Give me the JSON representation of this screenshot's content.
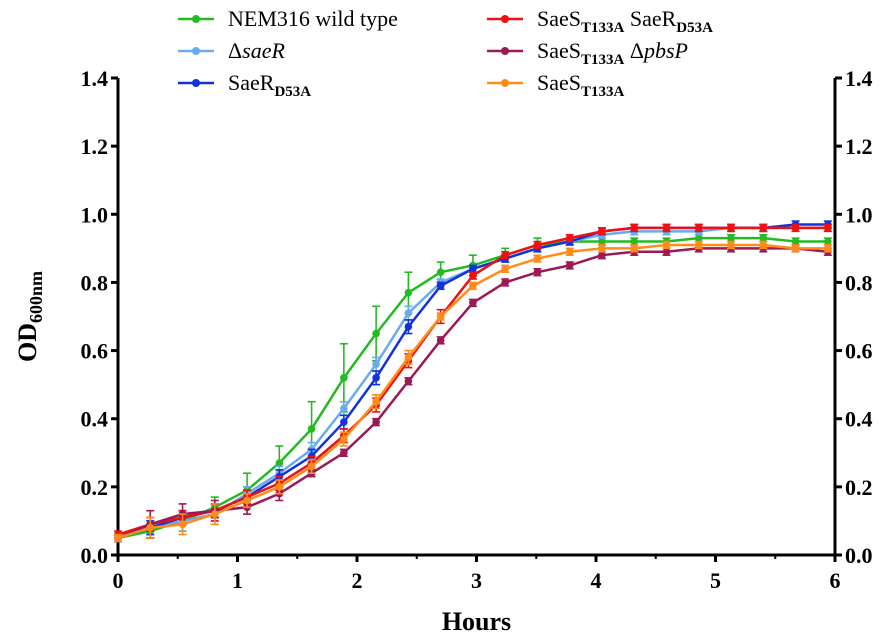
{
  "chart_data": {
    "type": "line",
    "xlabel": "Hours",
    "ylabel": {
      "main": "OD",
      "sub": "600nm"
    },
    "xlim": [
      0,
      6
    ],
    "ylim": [
      0,
      1.4
    ],
    "xticks": [
      "0",
      "1",
      "2",
      "3",
      "4",
      "5",
      "6"
    ],
    "yticks_left": [
      "0.0",
      "0.2",
      "0.4",
      "0.6",
      "0.8",
      "1.0",
      "1.2",
      "1.4"
    ],
    "yticks_right": [
      "0.0",
      "0.2",
      "0.4",
      "0.6",
      "0.8",
      "1.0",
      "1.2",
      "1.4"
    ],
    "grid": false,
    "legend_placement": "top",
    "x": [
      0,
      0.27,
      0.54,
      0.81,
      1.08,
      1.35,
      1.62,
      1.89,
      2.16,
      2.43,
      2.7,
      2.97,
      3.24,
      3.51,
      3.78,
      4.05,
      4.32,
      4.59,
      4.86,
      5.13,
      5.4,
      5.67,
      5.94
    ],
    "series": [
      {
        "name": "NEM316 wild type",
        "legend": [
          {
            "t": "NEM316 wild type"
          }
        ],
        "color": "#22bb22",
        "values": [
          0.05,
          0.07,
          0.1,
          0.14,
          0.19,
          0.27,
          0.37,
          0.52,
          0.65,
          0.77,
          0.83,
          0.85,
          0.88,
          0.91,
          0.92,
          0.92,
          0.92,
          0.92,
          0.93,
          0.93,
          0.93,
          0.92,
          0.92
        ],
        "errors": [
          0.01,
          0.02,
          0.03,
          0.03,
          0.05,
          0.05,
          0.08,
          0.1,
          0.08,
          0.06,
          0.03,
          0.03,
          0.02,
          0.02,
          0.01,
          0.01,
          0.01,
          0.01,
          0.01,
          0.01,
          0.01,
          0.01,
          0.01
        ]
      },
      {
        "name": "ΔsaeR",
        "legend": [
          {
            "t": "Δ"
          },
          {
            "t": "saeR",
            "i": true
          }
        ],
        "color": "#6aaaee",
        "values": [
          0.05,
          0.08,
          0.1,
          0.12,
          0.18,
          0.24,
          0.31,
          0.43,
          0.56,
          0.71,
          0.8,
          0.84,
          0.87,
          0.9,
          0.92,
          0.94,
          0.95,
          0.95,
          0.95,
          0.96,
          0.96,
          0.96,
          0.96
        ],
        "errors": [
          0.01,
          0.02,
          0.03,
          0.03,
          0.02,
          0.02,
          0.02,
          0.02,
          0.02,
          0.02,
          0.01,
          0.01,
          0.01,
          0.01,
          0.01,
          0.01,
          0.01,
          0.01,
          0.01,
          0.01,
          0.01,
          0.01,
          0.01
        ]
      },
      {
        "name": "SaeRD53A",
        "legend": [
          {
            "t": "SaeR"
          },
          {
            "t": "D53A",
            "sub": true
          }
        ],
        "color": "#1133dd",
        "values": [
          0.05,
          0.08,
          0.11,
          0.13,
          0.17,
          0.23,
          0.29,
          0.39,
          0.52,
          0.67,
          0.79,
          0.84,
          0.87,
          0.9,
          0.92,
          0.95,
          0.96,
          0.96,
          0.96,
          0.96,
          0.96,
          0.97,
          0.97
        ],
        "errors": [
          0.01,
          0.02,
          0.02,
          0.02,
          0.02,
          0.02,
          0.02,
          0.02,
          0.02,
          0.02,
          0.01,
          0.01,
          0.01,
          0.01,
          0.01,
          0.01,
          0.01,
          0.01,
          0.01,
          0.01,
          0.01,
          0.01,
          0.01
        ]
      },
      {
        "name": "SaeST133A SaeRD53A",
        "legend": [
          {
            "t": "SaeS"
          },
          {
            "t": "T133A",
            "sub": true
          },
          {
            "t": " SaeR"
          },
          {
            "t": "D53A",
            "sub": true
          }
        ],
        "color": "#ee1111",
        "values": [
          0.06,
          0.09,
          0.11,
          0.13,
          0.17,
          0.21,
          0.27,
          0.35,
          0.44,
          0.57,
          0.7,
          0.82,
          0.88,
          0.91,
          0.93,
          0.95,
          0.96,
          0.96,
          0.96,
          0.96,
          0.96,
          0.96,
          0.96
        ],
        "errors": [
          0.01,
          0.02,
          0.02,
          0.02,
          0.02,
          0.02,
          0.02,
          0.02,
          0.02,
          0.02,
          0.02,
          0.01,
          0.01,
          0.01,
          0.01,
          0.01,
          0.01,
          0.01,
          0.01,
          0.01,
          0.01,
          0.01,
          0.01
        ]
      },
      {
        "name": "SaeST133A ΔpbsP",
        "legend": [
          {
            "t": "SaeS"
          },
          {
            "t": "T133A",
            "sub": true
          },
          {
            "t": " Δ"
          },
          {
            "t": "pbsP",
            "i": true
          }
        ],
        "color": "#9b1a55",
        "values": [
          0.05,
          0.09,
          0.12,
          0.13,
          0.14,
          0.18,
          0.24,
          0.3,
          0.39,
          0.51,
          0.63,
          0.74,
          0.8,
          0.83,
          0.85,
          0.88,
          0.89,
          0.89,
          0.9,
          0.9,
          0.9,
          0.9,
          0.89
        ],
        "errors": [
          0.01,
          0.04,
          0.03,
          0.03,
          0.02,
          0.02,
          0.01,
          0.01,
          0.01,
          0.01,
          0.01,
          0.01,
          0.01,
          0.01,
          0.01,
          0.01,
          0.01,
          0.01,
          0.01,
          0.01,
          0.01,
          0.01,
          0.01
        ]
      },
      {
        "name": "SaeST133A",
        "legend": [
          {
            "t": "SaeS"
          },
          {
            "t": "T133A",
            "sub": true
          }
        ],
        "color": "#ff8c1a",
        "values": [
          0.05,
          0.08,
          0.09,
          0.12,
          0.16,
          0.2,
          0.26,
          0.34,
          0.45,
          0.58,
          0.7,
          0.79,
          0.84,
          0.87,
          0.89,
          0.9,
          0.9,
          0.91,
          0.91,
          0.91,
          0.91,
          0.9,
          0.9
        ],
        "errors": [
          0.01,
          0.03,
          0.03,
          0.03,
          0.02,
          0.02,
          0.02,
          0.02,
          0.02,
          0.02,
          0.01,
          0.01,
          0.01,
          0.01,
          0.01,
          0.01,
          0.01,
          0.01,
          0.01,
          0.01,
          0.01,
          0.01,
          0.01
        ]
      }
    ]
  }
}
